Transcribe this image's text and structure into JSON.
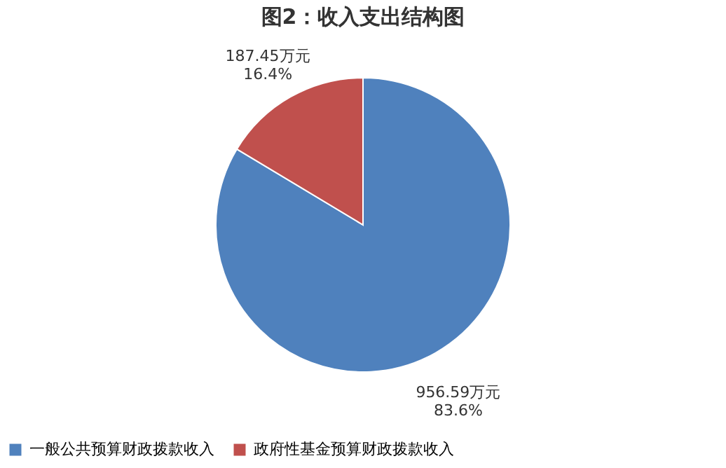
{
  "chart_data": {
    "type": "pie",
    "title": "图2：收入支出结构图",
    "categories": [
      "一般公共预算财政拨款收入",
      "政府性基金预算财政拨款收入"
    ],
    "values": [
      956.59,
      187.45
    ],
    "colors": [
      "#4f81bd",
      "#c0504d"
    ],
    "value_labels": [
      "956.59万元\n83.6%",
      "187.45万元\n16.4%"
    ],
    "legend": "bottom"
  }
}
